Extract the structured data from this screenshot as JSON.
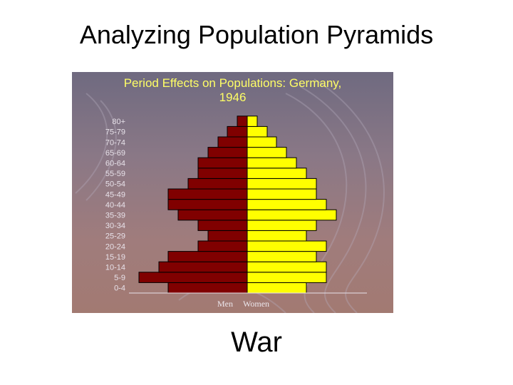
{
  "slide": {
    "title": "Analyzing Population Pyramids",
    "caption": "War"
  },
  "colors": {
    "men": "#800000",
    "women": "#ffff00",
    "title_text": "#ffff66",
    "axis_label": "#e8e2ea",
    "panel_top": "#6f6a80",
    "panel_bottom": "#a27a72"
  },
  "chart_data": {
    "type": "bar",
    "orientation": "horizontal-pyramid",
    "title_lines": [
      "Period Effects on Populations: Germany,",
      "1946"
    ],
    "categories": [
      "0-4",
      "5-9",
      "10-14",
      "15-19",
      "20-24",
      "25-29",
      "30-34",
      "35-39",
      "40-44",
      "45-49",
      "50-54",
      "55-59",
      "60-64",
      "65-69",
      "70-74",
      "75-79",
      "80+"
    ],
    "series": [
      {
        "name": "Men",
        "side": "left",
        "values": [
          111,
          152,
          124,
          111,
          69,
          55,
          69,
          97,
          111,
          111,
          83,
          69,
          69,
          55,
          41,
          28,
          14
        ]
      },
      {
        "name": "Women",
        "side": "right",
        "values": [
          83,
          111,
          111,
          97,
          111,
          83,
          97,
          125,
          111,
          97,
          97,
          83,
          69,
          55,
          41,
          28,
          14
        ]
      }
    ],
    "legend": [
      "Men",
      "Women"
    ],
    "legend_position": "bottom-center",
    "grid": false
  }
}
